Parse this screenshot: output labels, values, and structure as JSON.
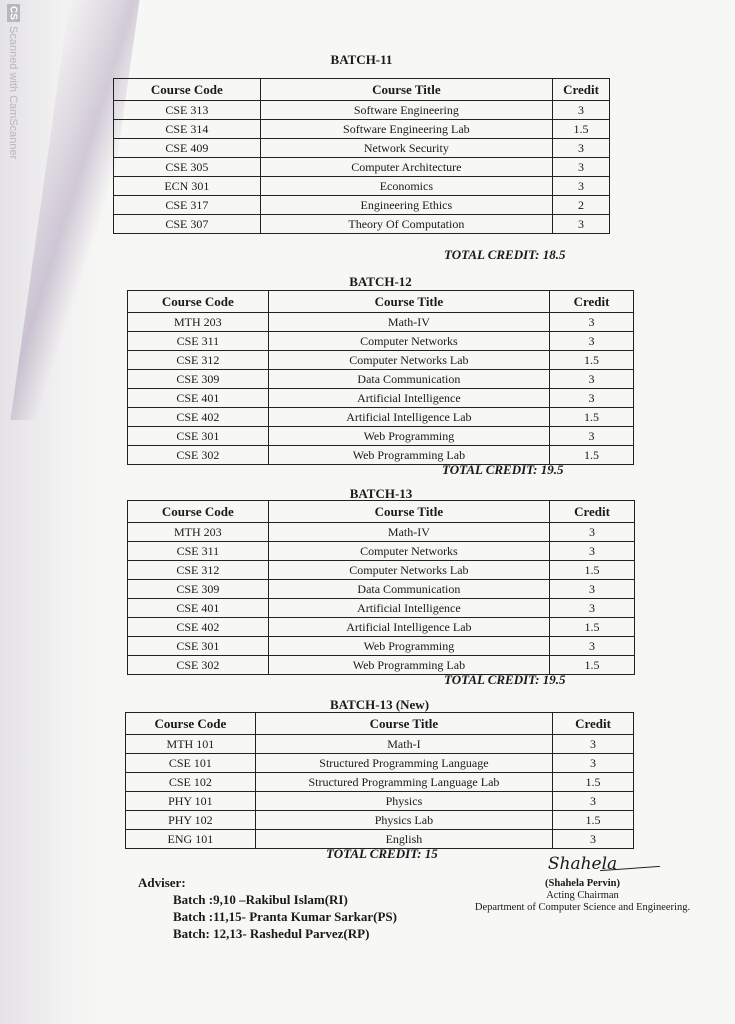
{
  "watermark": {
    "logo": "CS",
    "text": "Scanned with CamScanner"
  },
  "headers": {
    "code": "Course Code",
    "title": "Course Title",
    "credit": "Credit"
  },
  "batches": [
    {
      "title": "BATCH-11",
      "total": "TOTAL CREDIT: 18.5",
      "rows": [
        [
          "CSE 313",
          "Software Engineering",
          "3"
        ],
        [
          "CSE 314",
          "Software Engineering Lab",
          "1.5"
        ],
        [
          "CSE 409",
          "Network Security",
          "3"
        ],
        [
          "CSE 305",
          "Computer Architecture",
          "3"
        ],
        [
          "ECN 301",
          "Economics",
          "3"
        ],
        [
          "CSE 317",
          "Engineering Ethics",
          "2"
        ],
        [
          "CSE 307",
          "Theory Of Computation",
          "3"
        ]
      ]
    },
    {
      "title": "BATCH-12",
      "total": "TOTAL CREDIT: 19.5",
      "rows": [
        [
          "MTH 203",
          "Math-IV",
          "3"
        ],
        [
          "CSE 311",
          "Computer Networks",
          "3"
        ],
        [
          "CSE 312",
          "Computer Networks Lab",
          "1.5"
        ],
        [
          "CSE 309",
          "Data Communication",
          "3"
        ],
        [
          "CSE 401",
          "Artificial Intelligence",
          "3"
        ],
        [
          "CSE 402",
          "Artificial Intelligence Lab",
          "1.5"
        ],
        [
          "CSE 301",
          "Web Programming",
          "3"
        ],
        [
          "CSE 302",
          "Web Programming Lab",
          "1.5"
        ]
      ]
    },
    {
      "title": "BATCH-13",
      "total": "TOTAL CREDIT: 19.5",
      "rows": [
        [
          "MTH 203",
          "Math-IV",
          "3"
        ],
        [
          "CSE 311",
          "Computer Networks",
          "3"
        ],
        [
          "CSE 312",
          "Computer Networks Lab",
          "1.5"
        ],
        [
          "CSE 309",
          "Data Communication",
          "3"
        ],
        [
          "CSE 401",
          "Artificial Intelligence",
          "3"
        ],
        [
          "CSE 402",
          "Artificial Intelligence Lab",
          "1.5"
        ],
        [
          "CSE 301",
          "Web Programming",
          "3"
        ],
        [
          "CSE 302",
          "Web Programming Lab",
          "1.5"
        ]
      ]
    },
    {
      "title": "BATCH-13 (New)",
      "total": "TOTAL CREDIT: 15",
      "rows": [
        [
          "MTH 101",
          "Math-I",
          "3"
        ],
        [
          "CSE 101",
          "Structured Programming Language",
          "3"
        ],
        [
          "CSE 102",
          "Structured Programming Language Lab",
          "1.5"
        ],
        [
          "PHY 101",
          "Physics",
          "3"
        ],
        [
          "PHY 102",
          "Physics Lab",
          "1.5"
        ],
        [
          "ENG 101",
          "English",
          "3"
        ]
      ]
    }
  ],
  "adviser": {
    "label": "Adviser:",
    "lines": [
      "Batch :9,10 –Rakibul Islam(RI)",
      "Batch :11,15- Pranta Kumar Sarkar(PS)",
      "Batch: 12,13- Rashedul Parvez(RP)"
    ]
  },
  "signature": {
    "mark": "Shahela",
    "name": "(Shahela Pervin)",
    "role": "Acting Chairman",
    "department": "Department of Computer Science and Engineering."
  }
}
